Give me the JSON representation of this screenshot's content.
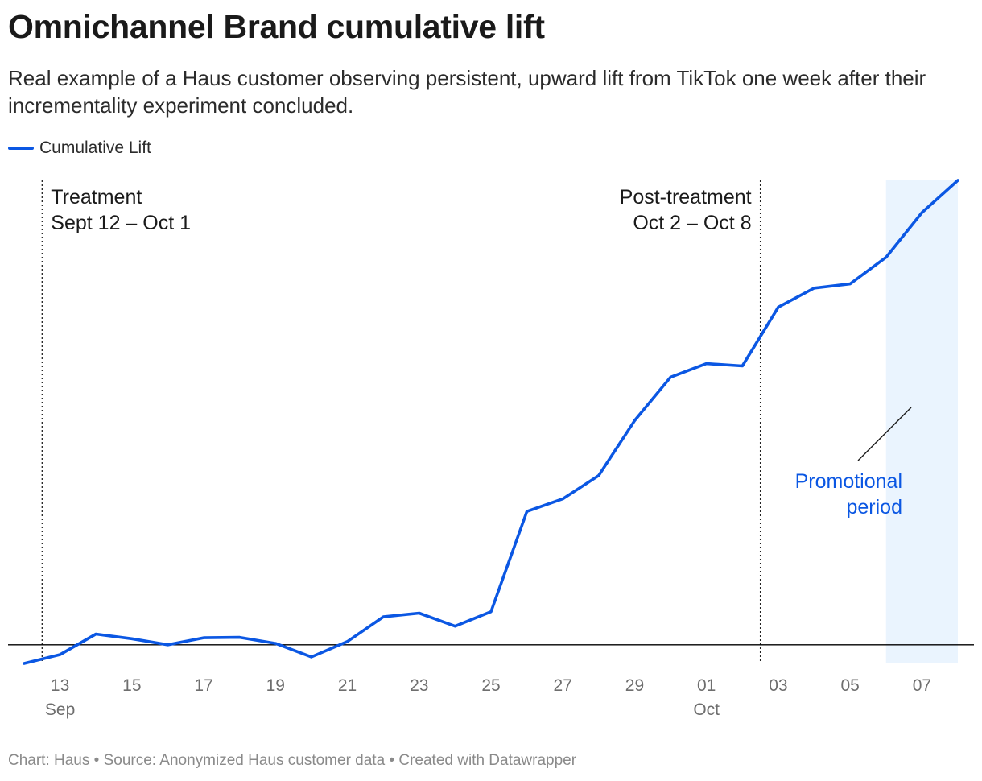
{
  "header": {
    "title": "Omnichannel Brand cumulative lift",
    "subtitle": "Real example of a Haus customer observing persistent, upward lift from TikTok one week after their incrementality experiment concluded."
  },
  "footer": {
    "credit": "Chart: Haus • Source: Anonymized Haus customer data • Created with Datawrapper"
  },
  "chart_data": {
    "type": "line",
    "title": "Omnichannel Brand cumulative lift",
    "xlabel": "",
    "ylabel": "",
    "grid": false,
    "legend_position": "top-left",
    "colors": {
      "line": "#0b57e3",
      "highlight_band": "#eaf4fe",
      "promo_label": "#0b57e3",
      "baseline": "#000000"
    },
    "x": [
      "2023-09-12",
      "2023-09-13",
      "2023-09-14",
      "2023-09-15",
      "2023-09-16",
      "2023-09-17",
      "2023-09-18",
      "2023-09-19",
      "2023-09-20",
      "2023-09-21",
      "2023-09-22",
      "2023-09-23",
      "2023-09-24",
      "2023-09-25",
      "2023-09-26",
      "2023-09-27",
      "2023-09-28",
      "2023-09-29",
      "2023-09-30",
      "2023-10-01",
      "2023-10-02",
      "2023-10-03",
      "2023-10-04",
      "2023-10-05",
      "2023-10-06",
      "2023-10-07",
      "2023-10-08"
    ],
    "series": [
      {
        "name": "Cumulative Lift",
        "values": [
          -0.4,
          -0.21,
          0.23,
          0.13,
          0.0,
          0.15,
          0.16,
          0.03,
          -0.26,
          0.07,
          0.6,
          0.68,
          0.4,
          0.71,
          2.86,
          3.13,
          3.63,
          4.81,
          5.74,
          6.03,
          5.98,
          7.24,
          7.65,
          7.74,
          8.31,
          9.27,
          9.96
        ]
      }
    ],
    "ylim": [
      -0.4,
      9.96
    ],
    "xlim": [
      "2023-09-12",
      "2023-10-08"
    ],
    "x_ticks": [
      {
        "date": "2023-09-13",
        "label": "13",
        "month": "Sep"
      },
      {
        "date": "2023-09-15",
        "label": "15"
      },
      {
        "date": "2023-09-17",
        "label": "17"
      },
      {
        "date": "2023-09-19",
        "label": "19"
      },
      {
        "date": "2023-09-21",
        "label": "21"
      },
      {
        "date": "2023-09-23",
        "label": "23"
      },
      {
        "date": "2023-09-25",
        "label": "25"
      },
      {
        "date": "2023-09-27",
        "label": "27"
      },
      {
        "date": "2023-09-29",
        "label": "29"
      },
      {
        "date": "2023-10-01",
        "label": "01",
        "month": "Oct"
      },
      {
        "date": "2023-10-03",
        "label": "03"
      },
      {
        "date": "2023-10-05",
        "label": "05"
      },
      {
        "date": "2023-10-07",
        "label": "07"
      }
    ],
    "reference_lines": [
      {
        "date": "2023-09-12",
        "style": "dotted",
        "label_lines": [
          "Treatment",
          "Sept 12 – Oct 1"
        ],
        "align": "left"
      },
      {
        "date": "2023-10-02",
        "style": "dotted",
        "label_lines": [
          "Post-treatment",
          "Oct 2 – Oct 8"
        ],
        "align": "right"
      }
    ],
    "highlight_range": {
      "start": "2023-10-06",
      "end": "2023-10-08",
      "label_lines": [
        "Promotional",
        "period"
      ]
    },
    "zero_line": 0
  }
}
